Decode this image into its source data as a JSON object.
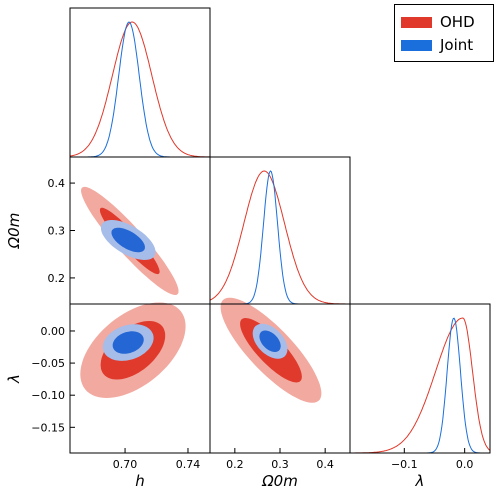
{
  "chart_data": {
    "type": "corner",
    "legend": {
      "position": "top-right",
      "entries": [
        {
          "name": "OHD",
          "color": "#e0382a"
        },
        {
          "name": "Joint",
          "color": "#1b6fdc"
        }
      ]
    },
    "parameters": [
      {
        "name": "h",
        "label": "h",
        "range": [
          0.665,
          0.754
        ],
        "ticks": [
          0.7,
          0.74
        ],
        "tick_labels": [
          "0.70",
          "0.74"
        ]
      },
      {
        "name": "Omega_0m",
        "label": "Ω0m",
        "range": [
          0.145,
          0.455
        ],
        "ticks": [
          0.2,
          0.3,
          0.4
        ],
        "tick_labels": [
          "0.2",
          "0.3",
          "0.4"
        ]
      },
      {
        "name": "lambda",
        "label": "λ",
        "range": [
          -0.19,
          0.042
        ],
        "ticks": [
          -0.15,
          -0.1,
          -0.05,
          0.0
        ],
        "tick_labels": [
          "−0.15",
          "−0.10",
          "−0.05",
          "0.00"
        ],
        "x_ticks": [
          -0.1,
          0.0
        ],
        "x_tick_labels": [
          "−0.1",
          "0.0"
        ]
      }
    ],
    "marginals": [
      {
        "param": "h",
        "series": [
          {
            "name": "OHD",
            "mean": 0.7045,
            "sigma": 0.0125
          },
          {
            "name": "Joint",
            "mean": 0.7025,
            "sigma": 0.0065
          }
        ]
      },
      {
        "param": "Omega_0m",
        "series": [
          {
            "name": "OHD",
            "mean": 0.265,
            "sigma": 0.045
          },
          {
            "name": "Joint",
            "mean": 0.279,
            "sigma": 0.0155
          }
        ]
      },
      {
        "param": "lambda",
        "series": [
          {
            "name": "OHD",
            "mean": -0.003,
            "sigma": 0.016,
            "tail_left_sigma": 0.045
          },
          {
            "name": "Joint",
            "mean": -0.018,
            "sigma": 0.011
          }
        ]
      }
    ],
    "contours_1sigma_2sigma": [
      {
        "x": "h",
        "y": "Omega_0m",
        "series": [
          {
            "name": "OHD",
            "center": [
              0.703,
              0.278
            ],
            "sd": [
              0.0125,
              0.046
            ],
            "corr": -0.93
          },
          {
            "name": "Joint",
            "center": [
              0.702,
              0.28
            ],
            "sd": [
              0.007,
              0.017
            ],
            "corr": -0.6
          }
        ]
      },
      {
        "x": "h",
        "y": "lambda",
        "series": [
          {
            "name": "OHD",
            "center": [
              0.705,
              -0.03
            ],
            "sd": [
              0.0135,
              0.03
            ],
            "corr": 0.5
          },
          {
            "name": "Joint",
            "center": [
              0.702,
              -0.018
            ],
            "sd": [
              0.0065,
              0.0115
            ],
            "corr": 0.25
          }
        ]
      },
      {
        "x": "Omega_0m",
        "y": "lambda",
        "series": [
          {
            "name": "OHD",
            "center": [
              0.28,
              -0.03
            ],
            "sd": [
              0.045,
              0.033
            ],
            "corr": -0.82
          },
          {
            "name": "Joint",
            "center": [
              0.278,
              -0.016
            ],
            "sd": [
              0.0155,
              0.011
            ],
            "corr": -0.45
          }
        ]
      }
    ],
    "colors": {
      "OHD_line": "#e0382a",
      "OHD_fill_1sigma": "#df3a2c",
      "OHD_fill_2sigma": "#f1a9a0",
      "Joint_line": "#1b6fdc",
      "Joint_fill_1sigma": "#2466d4",
      "Joint_fill_2sigma": "#a6bde9"
    },
    "grid": false
  }
}
